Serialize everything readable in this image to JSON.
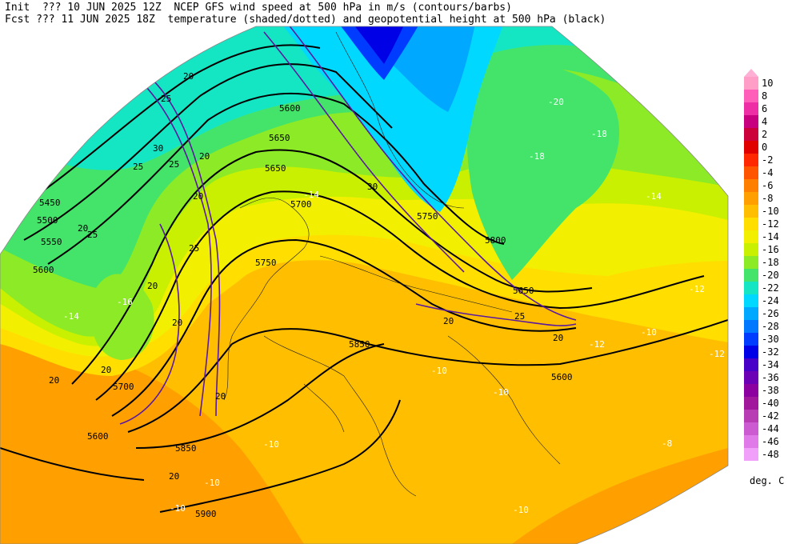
{
  "header": {
    "line1": "Init  ??? 10 JUN 2025 12Z  NCEP GFS wind speed at 500 hPa in m/s (contours/barbs)",
    "line2": "Fcst ??? 11 JUN 2025 18Z  temperature (shaded/dotted) and geopotential height at 500 hPa (black)"
  },
  "legend": {
    "units": "deg. C",
    "levels": [
      {
        "label": "10",
        "color": "#ff9fc8"
      },
      {
        "label": "8",
        "color": "#ff5fb8"
      },
      {
        "label": "6",
        "color": "#ee2ea5"
      },
      {
        "label": "4",
        "color": "#c8007f"
      },
      {
        "label": "2",
        "color": "#cc003a"
      },
      {
        "label": "0",
        "color": "#e00000"
      },
      {
        "label": "-2",
        "color": "#ff2800"
      },
      {
        "label": "-4",
        "color": "#ff5500"
      },
      {
        "label": "-6",
        "color": "#ff7f00"
      },
      {
        "label": "-8",
        "color": "#ff9f00"
      },
      {
        "label": "-10",
        "color": "#ffbe00"
      },
      {
        "label": "-12",
        "color": "#ffde00"
      },
      {
        "label": "-14",
        "color": "#f2f000"
      },
      {
        "label": "-16",
        "color": "#c8f000"
      },
      {
        "label": "-18",
        "color": "#8ceb26"
      },
      {
        "label": "-20",
        "color": "#44e46a"
      },
      {
        "label": "-22",
        "color": "#14e6c4"
      },
      {
        "label": "-24",
        "color": "#00d8ff"
      },
      {
        "label": "-26",
        "color": "#00a8ff"
      },
      {
        "label": "-28",
        "color": "#0078ff"
      },
      {
        "label": "-30",
        "color": "#003cff"
      },
      {
        "label": "-32",
        "color": "#0000e6"
      },
      {
        "label": "-34",
        "color": "#4800c8"
      },
      {
        "label": "-36",
        "color": "#6c00b4"
      },
      {
        "label": "-38",
        "color": "#8c00a0"
      },
      {
        "label": "-40",
        "color": "#a2189c"
      },
      {
        "label": "-42",
        "color": "#b83cb4"
      },
      {
        "label": "-44",
        "color": "#cc5ad0"
      },
      {
        "label": "-46",
        "color": "#e07ae8"
      },
      {
        "label": "-48",
        "color": "#f0a0f8"
      }
    ]
  },
  "map_labels": {
    "height": [
      "5450",
      "5500",
      "5550",
      "5600",
      "5600",
      "5650",
      "5650",
      "5700",
      "5700",
      "5750",
      "5750",
      "5800",
      "5850",
      "5850",
      "5900",
      "5600",
      "5650",
      "5600"
    ],
    "wind": [
      "20",
      "25",
      "25",
      "30",
      "20",
      "25",
      "20",
      "20",
      "25",
      "20",
      "20",
      "25",
      "20",
      "20",
      "30",
      "25",
      "20",
      "20",
      "20",
      "20"
    ],
    "temp": [
      "-22",
      "-20",
      "-18",
      "-18",
      "-14",
      "-14",
      "-16",
      "-14",
      "-12",
      "-12",
      "-10",
      "-10",
      "-12",
      "-10",
      "-10",
      "-8",
      "-10",
      "-10",
      "-10"
    ]
  }
}
